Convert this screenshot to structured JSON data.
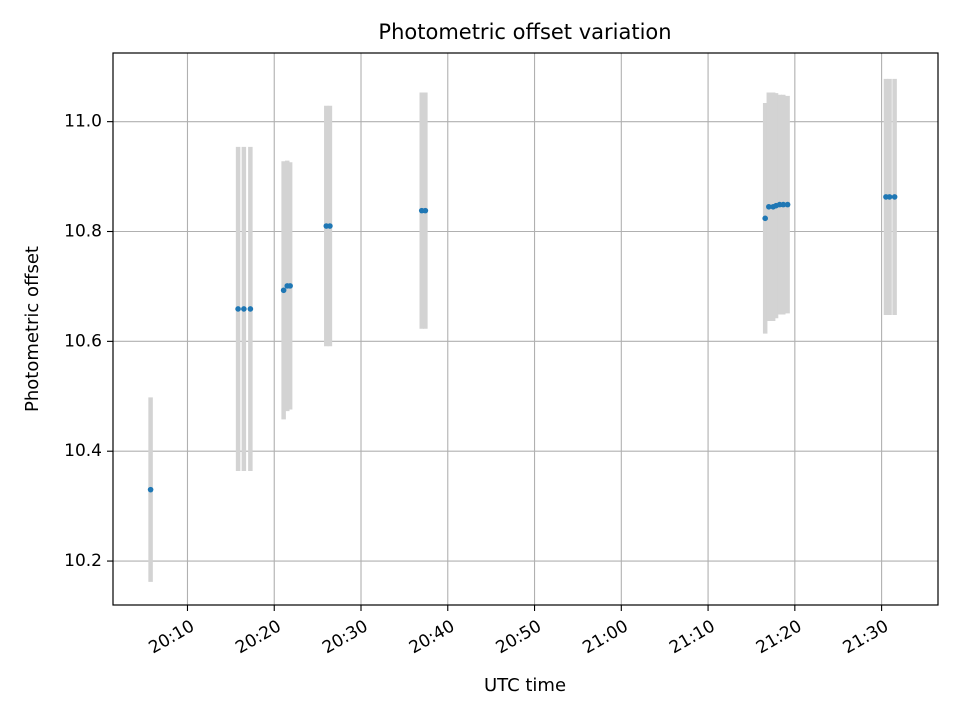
{
  "chart_data": {
    "type": "scatter",
    "title": "Photometric offset variation",
    "xlabel": "UTC time",
    "ylabel": "Photometric offset",
    "x_ticks": [
      "20:10",
      "20:20",
      "20:30",
      "20:40",
      "20:50",
      "21:00",
      "21:10",
      "21:20",
      "21:30"
    ],
    "y_ticks": [
      10.2,
      10.4,
      10.6,
      10.8,
      11.0
    ],
    "xlim": [
      "20:01:25",
      "21:36:30"
    ],
    "ylim": [
      10.12,
      11.125
    ],
    "grid": true,
    "colors": {
      "marker": "#1f77b4",
      "errorbar": "#d3d3d3",
      "grid": "#b0b0b0"
    },
    "points": [
      {
        "x": "20:05:45",
        "y": 10.33,
        "yerr": 0.168
      },
      {
        "x": "20:15:50",
        "y": 10.659,
        "yerr": 0.295
      },
      {
        "x": "20:16:30",
        "y": 10.659,
        "yerr": 0.295
      },
      {
        "x": "20:17:15",
        "y": 10.659,
        "yerr": 0.295
      },
      {
        "x": "20:21:05",
        "y": 10.693,
        "yerr": 0.235
      },
      {
        "x": "20:21:30",
        "y": 10.701,
        "yerr": 0.228
      },
      {
        "x": "20:21:50",
        "y": 10.701,
        "yerr": 0.225
      },
      {
        "x": "20:26:00",
        "y": 10.81,
        "yerr": 0.219
      },
      {
        "x": "20:26:25",
        "y": 10.81,
        "yerr": 0.219
      },
      {
        "x": "20:37:00",
        "y": 10.838,
        "yerr": 0.215
      },
      {
        "x": "20:37:25",
        "y": 10.838,
        "yerr": 0.215
      },
      {
        "x": "21:16:35",
        "y": 10.824,
        "yerr": 0.21
      },
      {
        "x": "21:17:00",
        "y": 10.845,
        "yerr": 0.208
      },
      {
        "x": "21:17:30",
        "y": 10.845,
        "yerr": 0.208
      },
      {
        "x": "21:17:50",
        "y": 10.847,
        "yerr": 0.205
      },
      {
        "x": "21:18:15",
        "y": 10.849,
        "yerr": 0.2
      },
      {
        "x": "21:18:40",
        "y": 10.849,
        "yerr": 0.2
      },
      {
        "x": "21:19:10",
        "y": 10.849,
        "yerr": 0.198
      },
      {
        "x": "21:30:30",
        "y": 10.863,
        "yerr": 0.215
      },
      {
        "x": "21:30:55",
        "y": 10.863,
        "yerr": 0.215
      },
      {
        "x": "21:31:30",
        "y": 10.863,
        "yerr": 0.215
      }
    ]
  }
}
